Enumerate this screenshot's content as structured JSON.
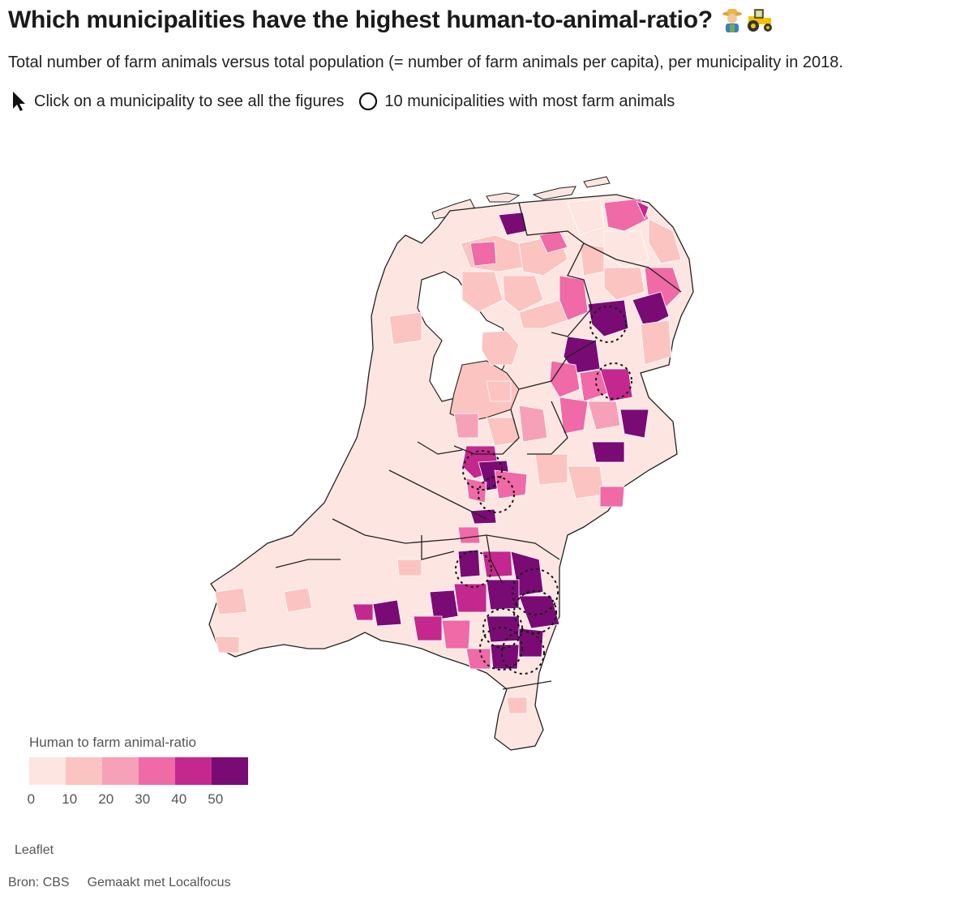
{
  "header": {
    "title": "Which municipalities have the highest human-to-animal-ratio?",
    "subtitle": "Total number of farm animals versus total population (= number of farm animals per capita), per municipality in 2018.",
    "instruction_click": "Click on a municipality to see all the figures",
    "instruction_circles": "10 municipalities with most farm animals"
  },
  "icons": [
    "farmer-icon",
    "tractor-icon",
    "cursor-arrow-icon",
    "circle-outline-icon"
  ],
  "legend": {
    "title": "Human to farm animal-ratio",
    "colors": [
      "#fde6e1",
      "#fbc4c1",
      "#f7a1b8",
      "#ef6aa6",
      "#c4288e",
      "#7a0b74"
    ],
    "ticks": [
      "0",
      "10",
      "20",
      "30",
      "40",
      "50"
    ]
  },
  "map": {
    "stroke_province": "#222222",
    "stroke_municipality": "#ffffff",
    "highlighted_municipalities_count": 10
  },
  "attribution": {
    "leaflet": "Leaflet",
    "source": "Bron: CBS",
    "made_with": "Gemaakt met Localfocus"
  }
}
